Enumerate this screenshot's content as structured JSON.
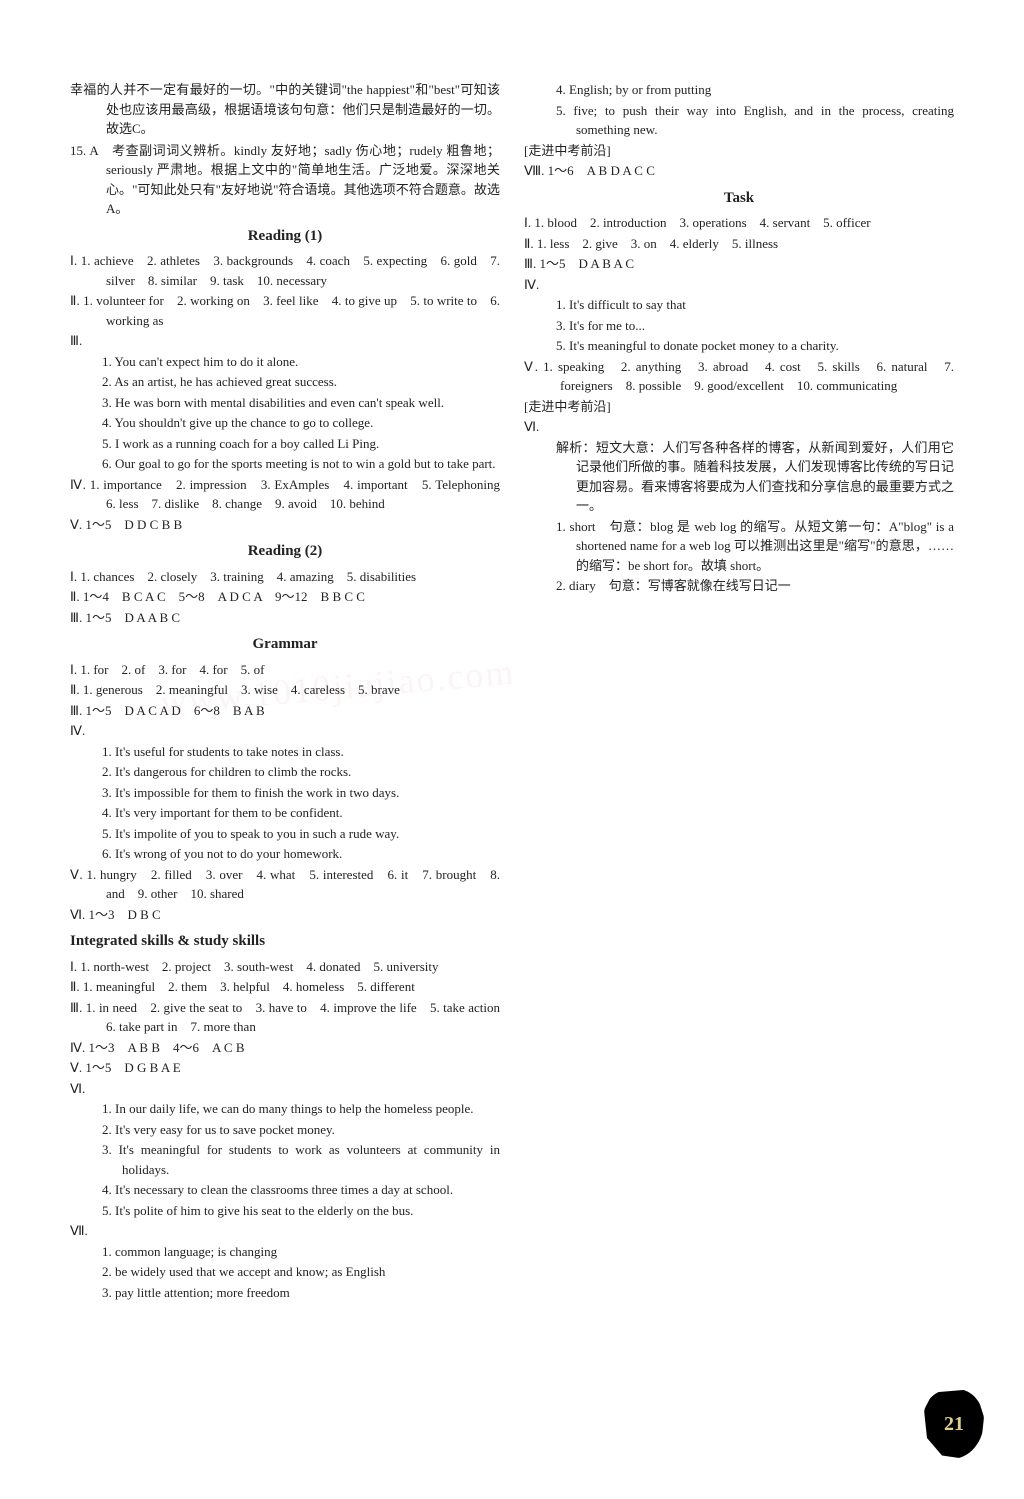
{
  "page_number": "21",
  "watermark": "www.1010jiajiao.com",
  "colors": {
    "text": "#222222",
    "background": "#ffffff",
    "watermark": "rgba(200,120,120,0.08)"
  },
  "leftCol": {
    "intro": [
      "幸福的人并不一定有最好的一切。\"中的关键词\"the happiest\"和\"best\"可知该处也应该用最高级，根据语境该句句意：他们只是制造最好的一切。故选C。",
      "15. A　考查副词词义辨析。kindly 友好地；sadly 伤心地；rudely 粗鲁地；seriously 严肃地。根据上文中的\"简单地生活。广泛地爱。深深地关心。\"可知此处只有\"友好地说\"符合语境。其他选项不符合题意。故选A。"
    ],
    "reading1": {
      "title": "Reading (1)",
      "I": "Ⅰ. 1. achieve　2. athletes　3. backgrounds　4. coach　5. expecting　6. gold　7. silver　8. similar　9. task　10. necessary",
      "II": "Ⅱ. 1. volunteer for　2. working on　3. feel like　4. to give up　5. to write to　6. working as",
      "III_label": "Ⅲ.",
      "III_items": [
        "1. You can't expect him to do it alone.",
        "2. As an artist, he has achieved great success.",
        "3. He was born with mental disabilities and even can't speak well.",
        "4. You shouldn't give up the chance to go to college.",
        "5. I work as a running coach for a boy called Li Ping.",
        "6. Our goal to go for the sports meeting is not to win a gold but to take part."
      ],
      "IV": "Ⅳ. 1. importance　2. impression　3. ExAmples　4. important　5. Telephoning　6. less　7. dislike　8. change　9. avoid　10. behind",
      "V": "Ⅴ. 1～5　D D C B B"
    },
    "reading2": {
      "title": "Reading (2)",
      "I": "Ⅰ. 1. chances　2. closely　3. training　4. amazing　5. disabilities",
      "II": "Ⅱ. 1～4　B C A C　5～8　A D C A　9～12　B B C C",
      "III": "Ⅲ. 1～5　D A A B C"
    },
    "grammar": {
      "title": "Grammar",
      "I": "Ⅰ. 1. for　2. of　3. for　4. for　5. of",
      "II": "Ⅱ. 1. generous　2. meaningful　3. wise　4. careless　5. brave",
      "III": "Ⅲ. 1～5　D A C A D　6～8　B A B",
      "IV_label": "Ⅳ.",
      "IV_items": [
        "1. It's useful for students to take notes in class.",
        "2. It's dangerous for children to climb the rocks.",
        "3. It's impossible for them to finish the work in two days.",
        "4. It's very important for them to be confident.",
        "5. It's impolite of you to speak to you in such a rude way.",
        "6. It's wrong of you not to do your homework."
      ]
    }
  },
  "rightCol": {
    "top": {
      "V": "Ⅴ. 1. hungry　2. filled　3. over　4. what　5. interested　6. it　7. brought　8. and　9. other　10. shared",
      "VI": "Ⅵ. 1～3　D B C"
    },
    "integrated": {
      "title": "Integrated skills & study skills",
      "I": "Ⅰ. 1. north-west　2. project　3. south-west　4. donated　5. university",
      "II": "Ⅱ. 1. meaningful　2. them　3. helpful　4. homeless　5. different",
      "III": "Ⅲ. 1. in need　2. give the seat to　3. have to　4. improve the life　5. take action　6. take part in　7. more than",
      "IV": "Ⅳ. 1～3　A B B　4～6　A C B",
      "V": "Ⅴ. 1～5　D G B A E",
      "VI_label": "Ⅵ.",
      "VI_items": [
        "1. In our daily life, we can do many things to help the homeless people.",
        "2. It's very easy for us to save pocket money.",
        "3. It's meaningful for students to work as volunteers at community in holidays.",
        "4. It's necessary to clean the classrooms three times a day at school.",
        "5. It's polite of him to give his seat to the elderly on the bus."
      ],
      "VII_label": "Ⅶ.",
      "VII_items": [
        "1. common language; is changing",
        "2. be widely used that we accept and know; as English",
        "3. pay little attention; more freedom",
        "4. English; by or from putting",
        "5. five; to push their way into English, and in the process, creating something new."
      ],
      "exam_label": "[走进中考前沿]",
      "VIII": "Ⅷ. 1～6　A B D A C C"
    },
    "task": {
      "title": "Task",
      "I": "Ⅰ. 1. blood　2. introduction　3. operations　4. servant　5. officer",
      "II": "Ⅱ. 1. less　2. give　3. on　4. elderly　5. illness",
      "III": "Ⅲ. 1～5　D A B A C",
      "IV_label": "Ⅳ.",
      "IV_items": [
        "1. It's difficult to say that",
        "3. It's for me to...",
        "5. It's meaningful to donate pocket money to a charity."
      ],
      "V": "Ⅴ. 1. speaking　2. anything　3. abroad　4. cost　5. skills　6. natural　7. foreigners　8. possible　9. good/excellent　10. communicating",
      "exam_label": "[走进中考前沿]",
      "VI_label": "Ⅵ.",
      "VI_intro": "解析：短文大意：人们写各种各样的博客，从新闻到爱好，人们用它记录他们所做的事。随着科技发展，人们发现博客比传统的写日记更加容易。看来博客将要成为人们查找和分享信息的最重要方式之一。",
      "VI_items": [
        "1. short　句意：blog 是 web log 的缩写。从短文第一句：A\"blog\" is a shortened name for a web log 可以推测出这里是\"缩写\"的意思，……的缩写：be short for。故填 short。",
        "2. diary　句意：写博客就像在线写日记一"
      ]
    }
  }
}
